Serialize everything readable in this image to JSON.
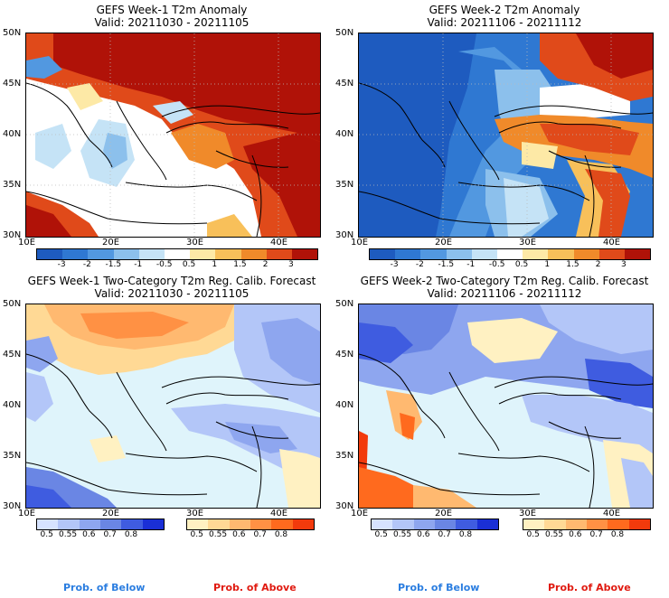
{
  "panels": [
    {
      "title_line1": "GEFS Week-1 T2m Anomaly",
      "title_line2": "Valid: 20211030 - 20211105"
    },
    {
      "title_line1": "GEFS Week-2 T2m Anomaly",
      "title_line2": "Valid: 20211106 - 20211112"
    },
    {
      "title_line1": "GEFS Week-1 Two-Category T2m Reg. Calib. Forecast",
      "title_line2": "Valid: 20211030 - 20211105"
    },
    {
      "title_line1": "GEFS Week-2 Two-Category T2m Reg. Calib. Forecast",
      "title_line2": "Valid: 20211106 - 20211112"
    }
  ],
  "lat_labels": [
    "50N",
    "45N",
    "40N",
    "35N",
    "30N"
  ],
  "lon_labels": [
    "10E",
    "20E",
    "30E",
    "40E"
  ],
  "anomaly_scale": {
    "labels": [
      "-3",
      "-2",
      "-1.5",
      "-1",
      "-0.5",
      "0.5",
      "1",
      "1.5",
      "2",
      "3"
    ],
    "colors": [
      "#1e5bbf",
      "#2f78d2",
      "#5298e0",
      "#8cc0ec",
      "#c5e3f6",
      "#ffffff",
      "#fde9a6",
      "#f8c05a",
      "#f08a2a",
      "#e04a1a",
      "#b01208"
    ]
  },
  "below_scale": {
    "labels": [
      "0.5",
      "0.55",
      "0.6",
      "0.7",
      "0.8"
    ],
    "colors": [
      "#d6e3ff",
      "#b3c6f8",
      "#8ea6ef",
      "#6a86e4",
      "#3f5ce0",
      "#1a2fd6"
    ]
  },
  "above_scale": {
    "labels": [
      "0.5",
      "0.55",
      "0.6",
      "0.7",
      "0.8"
    ],
    "colors": [
      "#fff1c2",
      "#ffd995",
      "#ffb970",
      "#ff9144",
      "#ff6a1e",
      "#f23a0c"
    ]
  },
  "legend": {
    "prob_below": "Prob. of Below",
    "prob_above": "Prob. of Above",
    "below_color": "#2a7de0",
    "above_color": "#e01a10"
  },
  "colors": {
    "land_neutral": "#ffffff",
    "sea_neutral": "#dff4fb"
  }
}
